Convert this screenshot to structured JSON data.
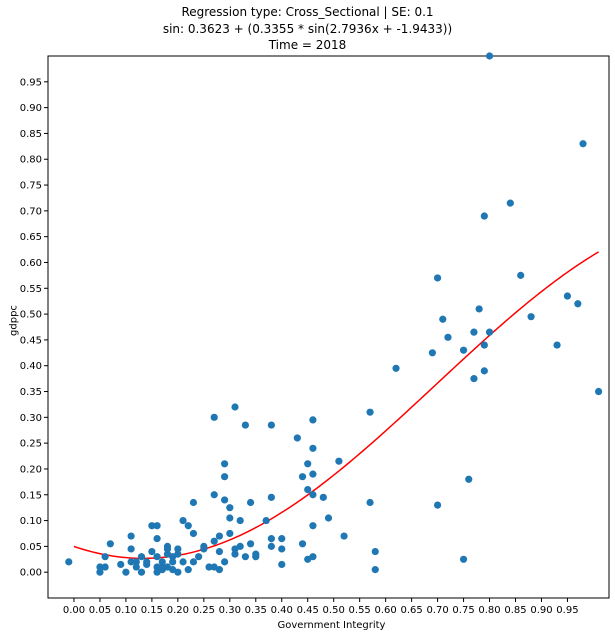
{
  "chart_data": {
    "type": "scatter",
    "title_lines": [
      "Regression type: Cross_Sectional | SE: 0.1",
      "sin: 0.3623 + (0.3355 * sin(2.7936x + -1.9433))",
      "Time = 2018"
    ],
    "xlabel": "Government Integrity",
    "ylabel": "gdppc",
    "xlim": [
      -0.05,
      1.03
    ],
    "ylim": [
      -0.05,
      1.0
    ],
    "xticks": [
      "0.00",
      "0.05",
      "0.10",
      "0.15",
      "0.20",
      "0.25",
      "0.30",
      "0.35",
      "0.40",
      "0.45",
      "0.50",
      "0.55",
      "0.60",
      "0.65",
      "0.70",
      "0.75",
      "0.80",
      "0.85",
      "0.90",
      "0.95"
    ],
    "yticks": [
      "0.00",
      "0.05",
      "0.10",
      "0.15",
      "0.20",
      "0.25",
      "0.30",
      "0.35",
      "0.40",
      "0.45",
      "0.50",
      "0.55",
      "0.60",
      "0.65",
      "0.70",
      "0.75",
      "0.80",
      "0.85",
      "0.90",
      "0.95"
    ],
    "grid": false,
    "colors": {
      "points": "#1f77b4",
      "fit_line": "#ff0000",
      "axes": "#000000"
    },
    "fit": {
      "name": "sin fit",
      "a": 0.3623,
      "b": 0.3355,
      "c": 2.7936,
      "d": -1.9433,
      "x_range": [
        0.0,
        1.01
      ]
    },
    "points": {
      "name": "observations",
      "x": [
        -0.01,
        0.05,
        0.05,
        0.06,
        0.06,
        0.07,
        0.09,
        0.1,
        0.11,
        0.11,
        0.11,
        0.12,
        0.12,
        0.13,
        0.13,
        0.14,
        0.14,
        0.15,
        0.15,
        0.16,
        0.16,
        0.16,
        0.16,
        0.16,
        0.17,
        0.17,
        0.17,
        0.18,
        0.18,
        0.18,
        0.18,
        0.19,
        0.19,
        0.19,
        0.2,
        0.2,
        0.2,
        0.21,
        0.21,
        0.22,
        0.22,
        0.23,
        0.23,
        0.23,
        0.24,
        0.25,
        0.25,
        0.26,
        0.27,
        0.27,
        0.27,
        0.27,
        0.28,
        0.28,
        0.28,
        0.29,
        0.29,
        0.29,
        0.29,
        0.3,
        0.3,
        0.3,
        0.31,
        0.31,
        0.31,
        0.32,
        0.32,
        0.33,
        0.33,
        0.34,
        0.34,
        0.35,
        0.35,
        0.37,
        0.38,
        0.38,
        0.38,
        0.38,
        0.4,
        0.4,
        0.4,
        0.43,
        0.44,
        0.44,
        0.45,
        0.45,
        0.45,
        0.46,
        0.46,
        0.46,
        0.46,
        0.46,
        0.46,
        0.48,
        0.49,
        0.51,
        0.52,
        0.57,
        0.57,
        0.58,
        0.58,
        0.62,
        0.69,
        0.7,
        0.7,
        0.71,
        0.72,
        0.75,
        0.75,
        0.76,
        0.77,
        0.77,
        0.78,
        0.79,
        0.79,
        0.79,
        0.8,
        0.8,
        0.84,
        0.86,
        0.88,
        0.93,
        0.95,
        0.97,
        0.98,
        1.01
      ],
      "y": [
        0.02,
        0.01,
        0.0,
        0.03,
        0.01,
        0.055,
        0.015,
        0.0,
        0.07,
        0.045,
        0.02,
        0.01,
        0.02,
        0.0,
        0.03,
        0.015,
        0.02,
        0.04,
        0.09,
        0.09,
        0.065,
        0.01,
        0.0,
        0.03,
        0.005,
        0.01,
        0.02,
        0.035,
        0.05,
        0.045,
        0.01,
        0.02,
        0.005,
        0.03,
        0.035,
        0.045,
        0.0,
        0.02,
        0.1,
        0.09,
        0.005,
        0.135,
        0.02,
        0.075,
        0.03,
        0.045,
        0.05,
        0.01,
        0.15,
        0.3,
        0.06,
        0.01,
        0.04,
        0.07,
        0.005,
        0.21,
        0.185,
        0.02,
        0.14,
        0.075,
        0.125,
        0.105,
        0.035,
        0.045,
        0.32,
        0.1,
        0.05,
        0.285,
        0.03,
        0.135,
        0.055,
        0.03,
        0.035,
        0.1,
        0.285,
        0.145,
        0.05,
        0.065,
        0.015,
        0.045,
        0.065,
        0.26,
        0.185,
        0.055,
        0.16,
        0.21,
        0.025,
        0.295,
        0.24,
        0.19,
        0.15,
        0.09,
        0.03,
        0.145,
        0.105,
        0.215,
        0.07,
        0.31,
        0.135,
        0.005,
        0.04,
        0.395,
        0.425,
        0.57,
        0.13,
        0.49,
        0.455,
        0.43,
        0.025,
        0.18,
        0.465,
        0.375,
        0.51,
        0.39,
        0.44,
        0.69,
        0.465,
        1.0,
        0.715,
        0.575,
        0.495,
        0.44,
        0.535,
        0.52,
        0.83,
        0.35
      ]
    }
  }
}
